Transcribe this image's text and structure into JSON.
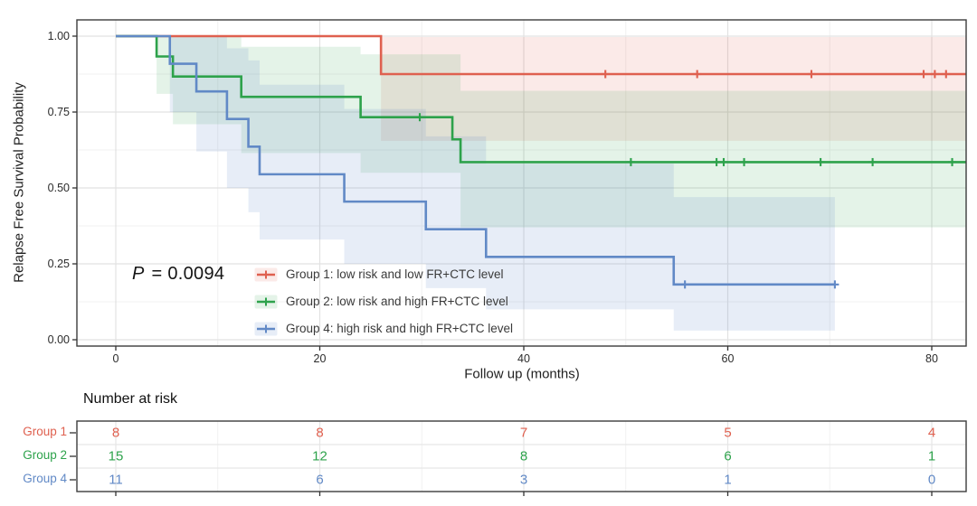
{
  "annotations": {
    "p_symbol": "P",
    "p_rest": "= 0.0094"
  },
  "chart_data": {
    "type": "line",
    "subtype": "kaplan-meier-step",
    "title": "",
    "xlabel": "Follow up (months)",
    "ylabel": "Relapse Free Survival Probability",
    "xlim": [
      -4,
      83.4
    ],
    "ylim": [
      0,
      1
    ],
    "x_ticks": [
      0,
      20,
      40,
      60,
      80
    ],
    "x_minor_ticks": [
      10,
      30,
      50,
      70
    ],
    "y_ticks": [
      0,
      0.25,
      0.5,
      0.75,
      1
    ],
    "y_tick_labels": [
      "0.00",
      "0.25",
      "0.50",
      "0.75",
      "1.00"
    ],
    "y_minor_ticks": [
      0.125,
      0.375,
      0.625,
      0.875
    ],
    "grid": true,
    "legend_position": "inside bottom-left",
    "p_value": "0.0094",
    "series": [
      {
        "name": "Group 1",
        "label": "Group 1: low risk and low FR+CTC level",
        "color": "#DF604F",
        "fill": "rgba(223,96,79,0.13)",
        "steps": [
          [
            0,
            1
          ],
          [
            26,
            0.875
          ]
        ],
        "end": 83.4,
        "censors": [
          [
            48,
            0.875
          ],
          [
            57,
            0.875
          ],
          [
            68.2,
            0.875
          ],
          [
            79.2,
            0.875
          ],
          [
            80.3,
            0.875
          ],
          [
            81.4,
            0.875
          ]
        ],
        "ci": [
          [
            26,
            83.4,
            0.997,
            0.655
          ]
        ]
      },
      {
        "name": "Group 2",
        "label": "Group 2: low risk and high FR+CTC level",
        "color": "#2DA24B",
        "fill": "rgba(45,162,75,0.13)",
        "steps": [
          [
            0,
            1
          ],
          [
            4,
            0.933
          ],
          [
            5.6,
            0.867
          ],
          [
            12.3,
            0.8
          ],
          [
            24,
            0.733
          ],
          [
            33,
            0.66
          ],
          [
            33.8,
            0.585
          ]
        ],
        "end": 83.4,
        "censors": [
          [
            29.8,
            0.733
          ],
          [
            50.5,
            0.585
          ],
          [
            58.9,
            0.585
          ],
          [
            59.6,
            0.585
          ],
          [
            61.6,
            0.585
          ],
          [
            69.1,
            0.585
          ],
          [
            74.2,
            0.585
          ],
          [
            82,
            0.585
          ]
        ],
        "ci": [
          [
            4,
            5.6,
            1,
            0.81
          ],
          [
            5.6,
            12.3,
            1,
            0.71
          ],
          [
            12.3,
            24,
            0.965,
            0.615
          ],
          [
            24,
            33.8,
            0.94,
            0.55
          ],
          [
            33.8,
            83.4,
            0.82,
            0.37
          ]
        ]
      },
      {
        "name": "Group 4",
        "label": "Group 4: high risk and high FR+CTC level",
        "color": "#6189C6",
        "fill": "rgba(97,137,198,0.15)",
        "steps": [
          [
            0,
            1
          ],
          [
            5.3,
            0.909
          ],
          [
            7.9,
            0.818
          ],
          [
            10.9,
            0.727
          ],
          [
            13,
            0.636
          ],
          [
            14.1,
            0.545
          ],
          [
            22.4,
            0.455
          ],
          [
            30.4,
            0.364
          ],
          [
            36.3,
            0.273
          ],
          [
            54.7,
            0.182
          ]
        ],
        "end": 70.5,
        "censors": [
          [
            55.8,
            0.182
          ],
          [
            70.5,
            0.182
          ]
        ],
        "ci": [
          [
            5.3,
            7.9,
            1,
            0.75
          ],
          [
            7.9,
            10.9,
            1,
            0.62
          ],
          [
            10.9,
            13,
            0.96,
            0.5
          ],
          [
            13,
            14.1,
            0.92,
            0.42
          ],
          [
            14.1,
            22.4,
            0.84,
            0.33
          ],
          [
            22.4,
            30.4,
            0.76,
            0.25
          ],
          [
            30.4,
            36.3,
            0.67,
            0.17
          ],
          [
            36.3,
            54.7,
            0.58,
            0.1
          ],
          [
            54.7,
            70.5,
            0.47,
            0.03
          ]
        ]
      }
    ],
    "risk_table": {
      "title": "Number at risk",
      "time_points": [
        0,
        20,
        40,
        60,
        80
      ],
      "rows": [
        {
          "label": "Group 1",
          "counts": [
            8,
            8,
            7,
            5,
            4
          ]
        },
        {
          "label": "Group 2",
          "counts": [
            15,
            12,
            8,
            6,
            1
          ]
        },
        {
          "label": "Group 4",
          "counts": [
            11,
            6,
            3,
            1,
            0
          ]
        }
      ]
    }
  }
}
